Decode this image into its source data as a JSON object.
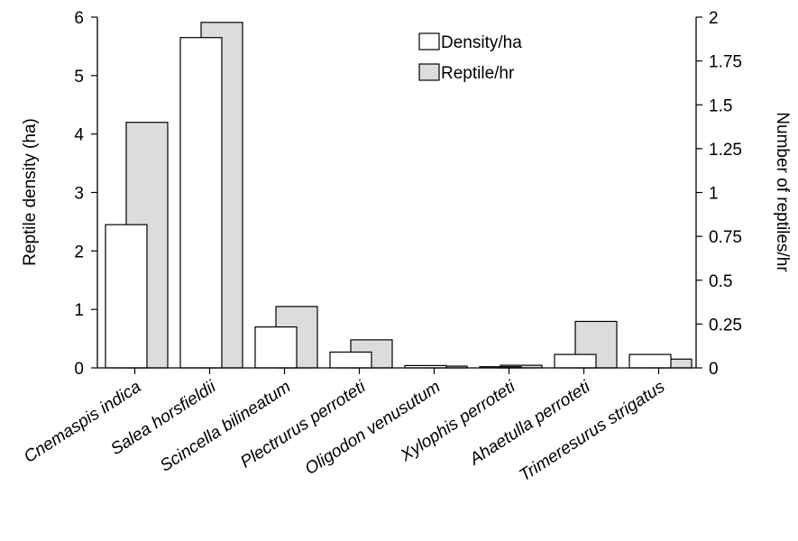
{
  "chart_data": {
    "type": "bar",
    "title": "",
    "categories": [
      "Cnemaspis indica",
      "Salea horsfieldii",
      "Scincella bilineatum",
      "Plectrurus perroteti",
      "Oligodon venusutum",
      "Xylophis perroteti",
      "Ahaetulla perroteti",
      "Trimeresurus strigatus"
    ],
    "series": [
      {
        "name": "Density/ha",
        "axis": "left",
        "color": "#ffffff",
        "values": [
          2.45,
          5.65,
          0.7,
          0.27,
          0.04,
          0.02,
          0.23,
          0.23
        ]
      },
      {
        "name": "Reptile/hr",
        "axis": "right",
        "color": "#dcdcdc",
        "values": [
          1.4,
          1.97,
          0.35,
          0.16,
          0.01,
          0.015,
          0.265,
          0.05
        ]
      }
    ],
    "ylabel": "Reptile density (ha)",
    "y2label": "Number of reptiles/hr",
    "ylim": [
      0,
      6
    ],
    "y2lim": [
      0,
      2
    ],
    "yticks": [
      "0",
      "1",
      "2",
      "3",
      "4",
      "5",
      "6"
    ],
    "y2ticks": [
      "0",
      "0.25",
      "0.5",
      "0.75",
      "1",
      "1.25",
      "1.5",
      "1.75",
      "2"
    ],
    "grid": false,
    "legend_position": "top-right"
  }
}
